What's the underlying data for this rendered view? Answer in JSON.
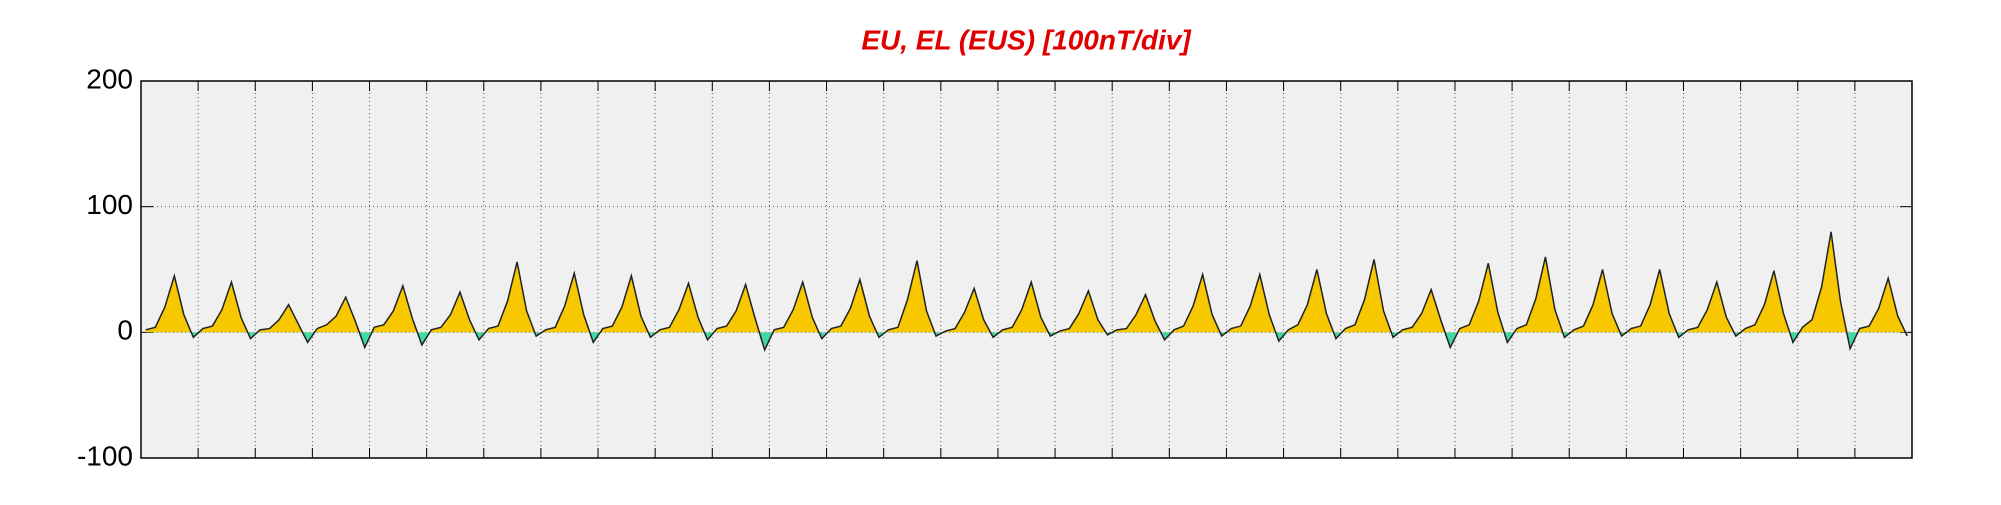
{
  "chart_data": {
    "type": "line",
    "title": "EU, EL (EUS)  [100nT/div]",
    "ylim": [
      -100,
      200
    ],
    "yticks": [
      -100,
      0,
      100,
      200
    ],
    "grid": true,
    "line_color": "#222222",
    "above_color": "#f7c800",
    "below_color": "#3fd9a8",
    "values": [
      2,
      4,
      20,
      45,
      14,
      -4,
      3,
      5,
      18,
      40,
      12,
      -5,
      2,
      3,
      10,
      22,
      7,
      -8,
      3,
      6,
      13,
      28,
      9,
      -12,
      4,
      6,
      17,
      37,
      11,
      -10,
      2,
      4,
      14,
      32,
      10,
      -6,
      3,
      5,
      25,
      56,
      17,
      -3,
      2,
      4,
      21,
      47,
      14,
      -8,
      3,
      5,
      20,
      45,
      13,
      -4,
      2,
      4,
      18,
      39,
      12,
      -6,
      3,
      5,
      17,
      38,
      11,
      -14,
      2,
      4,
      18,
      40,
      12,
      -5,
      3,
      5,
      19,
      42,
      13,
      -4,
      2,
      4,
      26,
      57,
      17,
      -3,
      1,
      3,
      16,
      35,
      10,
      -4,
      2,
      4,
      18,
      40,
      12,
      -3,
      1,
      3,
      15,
      33,
      10,
      -2,
      2,
      3,
      14,
      30,
      9,
      -6,
      2,
      5,
      21,
      46,
      14,
      -3,
      3,
      5,
      21,
      46,
      14,
      -7,
      2,
      6,
      22,
      50,
      15,
      -5,
      3,
      6,
      26,
      58,
      17,
      -4,
      2,
      4,
      15,
      34,
      10,
      -12,
      3,
      6,
      25,
      55,
      16,
      -8,
      3,
      6,
      27,
      60,
      18,
      -4,
      2,
      5,
      22,
      50,
      15,
      -3,
      3,
      5,
      22,
      50,
      15,
      -4,
      2,
      4,
      18,
      40,
      12,
      -3,
      3,
      6,
      22,
      49,
      15,
      -8,
      4,
      10,
      36,
      80,
      24,
      -13,
      3,
      5,
      19,
      43,
      13,
      -3
    ]
  }
}
